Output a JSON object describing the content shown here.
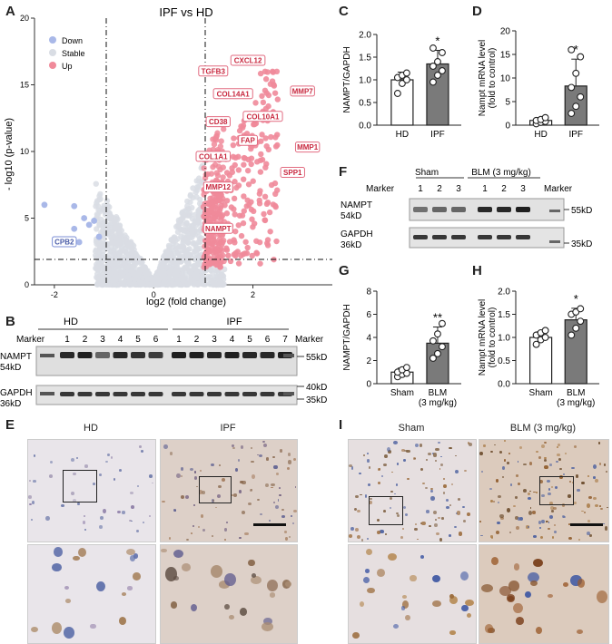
{
  "panels": {
    "A": "A",
    "B": "B",
    "C": "C",
    "D": "D",
    "E": "E",
    "F": "F",
    "G": "G",
    "H": "H",
    "I": "I"
  },
  "volcano": {
    "title": "IPF vs HD",
    "xlabel": "log2 (fold change)",
    "ylabel": "- log10 (p-value)",
    "legend": [
      {
        "label": "Down",
        "color": "#a9b8e8"
      },
      {
        "label": "Stable",
        "color": "#d9dde4"
      },
      {
        "label": "Up",
        "color": "#f08a9a"
      }
    ],
    "genes": [
      {
        "name": "CXCL12",
        "x": 1.9,
        "y": 16.8
      },
      {
        "name": "TGFB3",
        "x": 1.2,
        "y": 16.0
      },
      {
        "name": "MMP7",
        "x": 3.0,
        "y": 14.5
      },
      {
        "name": "COL14A1",
        "x": 1.6,
        "y": 14.3
      },
      {
        "name": "CD38",
        "x": 1.3,
        "y": 12.2
      },
      {
        "name": "COL10A1",
        "x": 2.2,
        "y": 12.6
      },
      {
        "name": "FAP",
        "x": 1.9,
        "y": 10.8
      },
      {
        "name": "MMP1",
        "x": 3.1,
        "y": 10.3
      },
      {
        "name": "COL1A1",
        "x": 1.2,
        "y": 9.6
      },
      {
        "name": "SPP1",
        "x": 2.8,
        "y": 8.4
      },
      {
        "name": "MMP12",
        "x": 1.3,
        "y": 7.3
      },
      {
        "name": "NAMPT",
        "x": 1.3,
        "y": 4.2
      },
      {
        "name": "CPB2",
        "x": -1.8,
        "y": 3.2
      }
    ]
  },
  "chart_data": [
    {
      "panel": "A",
      "type": "scatter",
      "title": "IPF vs HD",
      "xlabel": "log2 (fold change)",
      "ylabel": "- log10 (p-value)",
      "xlim": [
        -2.4,
        3.6
      ],
      "ylim": [
        0,
        20
      ],
      "xticks": [
        -2,
        0,
        2
      ],
      "yticks": [
        0,
        5,
        10,
        15,
        20
      ],
      "thresholds": {
        "x": [
          -1,
          1
        ],
        "y": 1.3
      },
      "series": [
        {
          "name": "Down",
          "points": [
            [
              -2.2,
              6.0
            ],
            [
              -1.6,
              5.9
            ],
            [
              -1.4,
              5.0
            ],
            [
              -1.3,
              4.5
            ],
            [
              -1.2,
              4.8
            ],
            [
              -1.6,
              4.2
            ],
            [
              -1.5,
              3.2
            ],
            [
              -1.8,
              3.2
            ],
            [
              -1.1,
              3.6
            ]
          ]
        },
        {
          "name": "Up",
          "points": [
            [
              1.9,
              16.8
            ],
            [
              1.2,
              16.0
            ],
            [
              3.0,
              14.5
            ],
            [
              1.6,
              14.3
            ],
            [
              1.3,
              12.2
            ],
            [
              2.2,
              12.6
            ],
            [
              1.9,
              10.8
            ],
            [
              3.1,
              10.3
            ],
            [
              1.2,
              9.6
            ],
            [
              2.8,
              8.4
            ],
            [
              1.3,
              7.3
            ],
            [
              1.3,
              4.2
            ]
          ]
        }
      ]
    },
    {
      "panel": "C",
      "type": "bar",
      "ylabel": "NAMPT/GAPDH",
      "categories": [
        "HD",
        "IPF"
      ],
      "values": [
        1.0,
        1.35
      ],
      "errors": [
        0.17,
        0.3
      ],
      "ylim": [
        0,
        2.0
      ],
      "yticks": [
        "0.0",
        "0.5",
        "1.0",
        "1.5",
        "2.0"
      ],
      "significance": "*",
      "points": [
        [
          0.7,
          0.92,
          1.0,
          1.05,
          1.1,
          1.15
        ],
        [
          0.95,
          1.1,
          1.2,
          1.3,
          1.4,
          1.6,
          1.7
        ]
      ]
    },
    {
      "panel": "D",
      "type": "bar",
      "ylabel": "Nampt mRNA level (fold to control)",
      "categories": [
        "HD",
        "IPF"
      ],
      "values": [
        1.0,
        8.3
      ],
      "errors": [
        0.6,
        5.7
      ],
      "ylim": [
        0,
        20
      ],
      "yticks": [
        "0",
        "5",
        "10",
        "15",
        "20"
      ],
      "significance": "*",
      "points": [
        [
          0.3,
          0.6,
          0.8,
          1.0,
          1.2,
          1.6
        ],
        [
          2.5,
          4.0,
          6.0,
          8.0,
          11.0,
          14.5,
          16.0
        ]
      ]
    },
    {
      "panel": "G",
      "type": "bar",
      "ylabel": "NAMPT/GAPDH",
      "categories": [
        "Sham",
        "BLM\n(3 mg/kg)"
      ],
      "values": [
        1.0,
        3.5
      ],
      "errors": [
        0.35,
        1.4
      ],
      "ylim": [
        0,
        8
      ],
      "yticks": [
        "0",
        "2",
        "4",
        "6",
        "8"
      ],
      "significance": "**",
      "points": [
        [
          0.6,
          0.8,
          0.9,
          1.0,
          1.2,
          1.4
        ],
        [
          2.2,
          2.6,
          3.2,
          3.7,
          4.3,
          5.2
        ]
      ]
    },
    {
      "panel": "H",
      "type": "bar",
      "ylabel": "Nampt mRNA level (fold to control)",
      "categories": [
        "Sham",
        "BLM\n(3 mg/kg)"
      ],
      "values": [
        1.0,
        1.38
      ],
      "errors": [
        0.12,
        0.25
      ],
      "ylim": [
        0,
        2.0
      ],
      "yticks": [
        "0.0",
        "0.5",
        "1.0",
        "1.5",
        "2.0"
      ],
      "significance": "*",
      "points": [
        [
          0.85,
          0.95,
          1.0,
          1.05,
          1.1,
          1.15
        ],
        [
          1.05,
          1.2,
          1.35,
          1.5,
          1.55,
          1.62
        ]
      ]
    }
  ],
  "blotB": {
    "marker": "Marker",
    "groups": [
      {
        "label": "HD",
        "lanes": [
          "1",
          "2",
          "3",
          "4",
          "5",
          "6"
        ]
      },
      {
        "label": "IPF",
        "lanes": [
          "1",
          "2",
          "3",
          "4",
          "5",
          "6",
          "7"
        ]
      }
    ],
    "rows": [
      {
        "protein": "NAMPT",
        "size": "54kD"
      },
      {
        "protein": "GAPDH",
        "size": "36kD"
      }
    ],
    "markers": [
      "55kD",
      "40kD",
      "35kD"
    ]
  },
  "blotF": {
    "marker": "Marker",
    "groups": [
      {
        "label": "Sham",
        "lanes": [
          "1",
          "2",
          "3"
        ]
      },
      {
        "label": "BLM (3 mg/kg)",
        "lanes": [
          "1",
          "2",
          "3"
        ]
      }
    ],
    "rows": [
      {
        "protein": "NAMPT",
        "size": "54kD"
      },
      {
        "protein": "GAPDH",
        "size": "36kD"
      }
    ],
    "markers": [
      "55kD",
      "35kD"
    ]
  },
  "histoE": {
    "left": "HD",
    "right": "IPF"
  },
  "histoI": {
    "left": "Sham",
    "right": "BLM (3 mg/kg)"
  }
}
